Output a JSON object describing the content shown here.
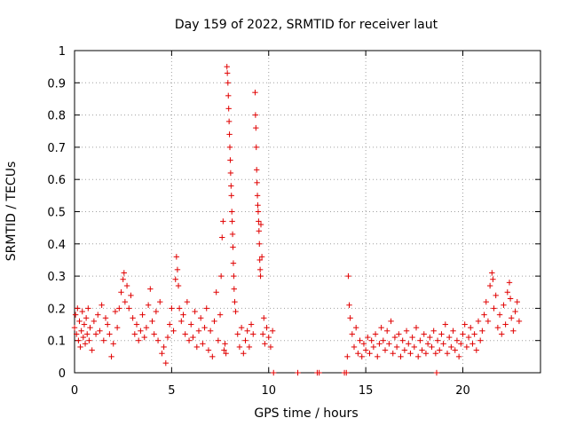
{
  "chart_data": {
    "type": "scatter",
    "title": "Day 159 of 2022, SRMTID for receiver laut",
    "xlabel": "GPS time / hours",
    "ylabel": "SRMTID / TECUs",
    "xlim": [
      0,
      24
    ],
    "ylim": [
      0,
      1
    ],
    "xticks": [
      0,
      5,
      10,
      15,
      20
    ],
    "yticks": [
      0,
      0.1,
      0.2,
      0.3,
      0.4,
      0.5,
      0.6,
      0.7,
      0.8,
      0.9,
      1
    ],
    "xtick_labels": [
      "0",
      "5",
      "10",
      "15",
      "20"
    ],
    "ytick_labels": [
      "0",
      "0.1",
      "0.2",
      "0.3",
      "0.4",
      "0.5",
      "0.6",
      "0.7",
      "0.8",
      "0.9",
      "1"
    ],
    "grid": true,
    "marker": "plus",
    "color": "#e00000",
    "series": [
      {
        "name": "SRMTID",
        "points": [
          [
            0.0,
            0.14
          ],
          [
            0.05,
            0.18
          ],
          [
            0.1,
            0.12
          ],
          [
            0.15,
            0.2
          ],
          [
            0.2,
            0.1
          ],
          [
            0.25,
            0.16
          ],
          [
            0.3,
            0.08
          ],
          [
            0.35,
            0.13
          ],
          [
            0.4,
            0.19
          ],
          [
            0.45,
            0.11
          ],
          [
            0.5,
            0.15
          ],
          [
            0.55,
            0.09
          ],
          [
            0.6,
            0.17
          ],
          [
            0.65,
            0.12
          ],
          [
            0.7,
            0.2
          ],
          [
            0.75,
            0.1
          ],
          [
            0.8,
            0.14
          ],
          [
            0.9,
            0.07
          ],
          [
            1.0,
            0.16
          ],
          [
            1.1,
            0.12
          ],
          [
            1.2,
            0.18
          ],
          [
            1.3,
            0.13
          ],
          [
            1.4,
            0.21
          ],
          [
            1.5,
            0.1
          ],
          [
            1.6,
            0.17
          ],
          [
            1.7,
            0.15
          ],
          [
            1.8,
            0.12
          ],
          [
            1.9,
            0.05
          ],
          [
            2.0,
            0.09
          ],
          [
            2.1,
            0.19
          ],
          [
            2.2,
            0.14
          ],
          [
            2.3,
            0.2
          ],
          [
            2.4,
            0.25
          ],
          [
            2.5,
            0.29
          ],
          [
            2.55,
            0.31
          ],
          [
            2.6,
            0.22
          ],
          [
            2.7,
            0.27
          ],
          [
            2.8,
            0.2
          ],
          [
            2.9,
            0.24
          ],
          [
            3.0,
            0.17
          ],
          [
            3.1,
            0.12
          ],
          [
            3.2,
            0.15
          ],
          [
            3.3,
            0.1
          ],
          [
            3.4,
            0.13
          ],
          [
            3.5,
            0.18
          ],
          [
            3.6,
            0.11
          ],
          [
            3.7,
            0.14
          ],
          [
            3.8,
            0.21
          ],
          [
            3.9,
            0.26
          ],
          [
            4.0,
            0.16
          ],
          [
            4.1,
            0.12
          ],
          [
            4.2,
            0.19
          ],
          [
            4.3,
            0.1
          ],
          [
            4.4,
            0.22
          ],
          [
            4.5,
            0.06
          ],
          [
            4.6,
            0.08
          ],
          [
            4.7,
            0.03
          ],
          [
            4.8,
            0.11
          ],
          [
            4.9,
            0.15
          ],
          [
            5.0,
            0.2
          ],
          [
            5.1,
            0.13
          ],
          [
            5.2,
            0.29
          ],
          [
            5.25,
            0.36
          ],
          [
            5.3,
            0.32
          ],
          [
            5.35,
            0.27
          ],
          [
            5.4,
            0.2
          ],
          [
            5.5,
            0.16
          ],
          [
            5.6,
            0.18
          ],
          [
            5.7,
            0.12
          ],
          [
            5.8,
            0.22
          ],
          [
            5.9,
            0.1
          ],
          [
            6.0,
            0.15
          ],
          [
            6.1,
            0.11
          ],
          [
            6.2,
            0.19
          ],
          [
            6.3,
            0.08
          ],
          [
            6.4,
            0.13
          ],
          [
            6.5,
            0.17
          ],
          [
            6.6,
            0.09
          ],
          [
            6.7,
            0.14
          ],
          [
            6.8,
            0.2
          ],
          [
            6.9,
            0.07
          ],
          [
            7.0,
            0.13
          ],
          [
            7.1,
            0.05
          ],
          [
            7.2,
            0.16
          ],
          [
            7.3,
            0.25
          ],
          [
            7.4,
            0.1
          ],
          [
            7.5,
            0.18
          ],
          [
            7.55,
            0.3
          ],
          [
            7.6,
            0.42
          ],
          [
            7.65,
            0.47
          ],
          [
            7.7,
            0.07
          ],
          [
            7.75,
            0.09
          ],
          [
            7.8,
            0.06
          ],
          [
            7.85,
            0.95
          ],
          [
            7.87,
            0.93
          ],
          [
            7.9,
            0.9
          ],
          [
            7.92,
            0.86
          ],
          [
            7.94,
            0.82
          ],
          [
            7.96,
            0.78
          ],
          [
            7.98,
            0.74
          ],
          [
            8.0,
            0.7
          ],
          [
            8.02,
            0.66
          ],
          [
            8.04,
            0.62
          ],
          [
            8.06,
            0.58
          ],
          [
            8.08,
            0.55
          ],
          [
            8.1,
            0.5
          ],
          [
            8.12,
            0.47
          ],
          [
            8.14,
            0.43
          ],
          [
            8.16,
            0.39
          ],
          [
            8.18,
            0.34
          ],
          [
            8.2,
            0.3
          ],
          [
            8.22,
            0.26
          ],
          [
            8.25,
            0.22
          ],
          [
            8.3,
            0.19
          ],
          [
            8.4,
            0.12
          ],
          [
            8.5,
            0.08
          ],
          [
            8.6,
            0.14
          ],
          [
            8.7,
            0.06
          ],
          [
            8.8,
            0.1
          ],
          [
            8.9,
            0.13
          ],
          [
            9.0,
            0.08
          ],
          [
            9.1,
            0.15
          ],
          [
            9.2,
            0.12
          ],
          [
            9.3,
            0.87
          ],
          [
            9.32,
            0.8
          ],
          [
            9.34,
            0.76
          ],
          [
            9.36,
            0.7
          ],
          [
            9.38,
            0.63
          ],
          [
            9.4,
            0.59
          ],
          [
            9.42,
            0.55
          ],
          [
            9.44,
            0.52
          ],
          [
            9.46,
            0.5
          ],
          [
            9.48,
            0.47
          ],
          [
            9.5,
            0.44
          ],
          [
            9.52,
            0.4
          ],
          [
            9.54,
            0.35
          ],
          [
            9.56,
            0.32
          ],
          [
            9.58,
            0.3
          ],
          [
            9.6,
            0.46
          ],
          [
            9.65,
            0.36
          ],
          [
            9.7,
            0.12
          ],
          [
            9.75,
            0.17
          ],
          [
            9.8,
            0.09
          ],
          [
            9.9,
            0.14
          ],
          [
            10.0,
            0.11
          ],
          [
            10.1,
            0.08
          ],
          [
            10.2,
            0.13
          ],
          [
            10.25,
            0.0
          ],
          [
            11.5,
            0.0
          ],
          [
            12.5,
            0.0
          ],
          [
            12.6,
            0.0
          ],
          [
            13.9,
            0.0
          ],
          [
            14.0,
            0.0
          ],
          [
            14.05,
            0.05
          ],
          [
            14.1,
            0.3
          ],
          [
            14.15,
            0.21
          ],
          [
            14.2,
            0.17
          ],
          [
            14.3,
            0.12
          ],
          [
            14.4,
            0.08
          ],
          [
            14.5,
            0.14
          ],
          [
            14.6,
            0.06
          ],
          [
            14.7,
            0.1
          ],
          [
            14.8,
            0.05
          ],
          [
            14.9,
            0.09
          ],
          [
            15.0,
            0.07
          ],
          [
            15.1,
            0.11
          ],
          [
            15.2,
            0.06
          ],
          [
            15.3,
            0.1
          ],
          [
            15.4,
            0.08
          ],
          [
            15.5,
            0.12
          ],
          [
            15.6,
            0.05
          ],
          [
            15.7,
            0.09
          ],
          [
            15.8,
            0.14
          ],
          [
            15.9,
            0.1
          ],
          [
            16.0,
            0.07
          ],
          [
            16.1,
            0.13
          ],
          [
            16.2,
            0.09
          ],
          [
            16.3,
            0.16
          ],
          [
            16.4,
            0.06
          ],
          [
            16.5,
            0.11
          ],
          [
            16.6,
            0.08
          ],
          [
            16.7,
            0.12
          ],
          [
            16.8,
            0.05
          ],
          [
            16.9,
            0.1
          ],
          [
            17.0,
            0.07
          ],
          [
            17.1,
            0.13
          ],
          [
            17.2,
            0.09
          ],
          [
            17.3,
            0.06
          ],
          [
            17.4,
            0.11
          ],
          [
            17.5,
            0.08
          ],
          [
            17.6,
            0.14
          ],
          [
            17.7,
            0.05
          ],
          [
            17.8,
            0.1
          ],
          [
            17.9,
            0.07
          ],
          [
            18.0,
            0.12
          ],
          [
            18.1,
            0.06
          ],
          [
            18.2,
            0.09
          ],
          [
            18.3,
            0.11
          ],
          [
            18.4,
            0.08
          ],
          [
            18.5,
            0.13
          ],
          [
            18.6,
            0.06
          ],
          [
            18.65,
            0.0
          ],
          [
            18.7,
            0.1
          ],
          [
            18.8,
            0.07
          ],
          [
            18.9,
            0.12
          ],
          [
            19.0,
            0.09
          ],
          [
            19.1,
            0.15
          ],
          [
            19.2,
            0.06
          ],
          [
            19.3,
            0.11
          ],
          [
            19.4,
            0.08
          ],
          [
            19.5,
            0.13
          ],
          [
            19.6,
            0.07
          ],
          [
            19.7,
            0.1
          ],
          [
            19.8,
            0.05
          ],
          [
            19.9,
            0.09
          ],
          [
            20.0,
            0.12
          ],
          [
            20.1,
            0.15
          ],
          [
            20.2,
            0.08
          ],
          [
            20.3,
            0.11
          ],
          [
            20.4,
            0.14
          ],
          [
            20.5,
            0.09
          ],
          [
            20.6,
            0.12
          ],
          [
            20.7,
            0.07
          ],
          [
            20.8,
            0.16
          ],
          [
            20.9,
            0.1
          ],
          [
            21.0,
            0.13
          ],
          [
            21.1,
            0.18
          ],
          [
            21.2,
            0.22
          ],
          [
            21.3,
            0.16
          ],
          [
            21.4,
            0.27
          ],
          [
            21.5,
            0.31
          ],
          [
            21.55,
            0.29
          ],
          [
            21.6,
            0.2
          ],
          [
            21.7,
            0.24
          ],
          [
            21.8,
            0.14
          ],
          [
            21.9,
            0.18
          ],
          [
            22.0,
            0.12
          ],
          [
            22.1,
            0.21
          ],
          [
            22.2,
            0.15
          ],
          [
            22.3,
            0.25
          ],
          [
            22.4,
            0.28
          ],
          [
            22.45,
            0.23
          ],
          [
            22.5,
            0.17
          ],
          [
            22.6,
            0.13
          ],
          [
            22.7,
            0.19
          ],
          [
            22.8,
            0.22
          ],
          [
            22.9,
            0.16
          ]
        ]
      }
    ]
  }
}
